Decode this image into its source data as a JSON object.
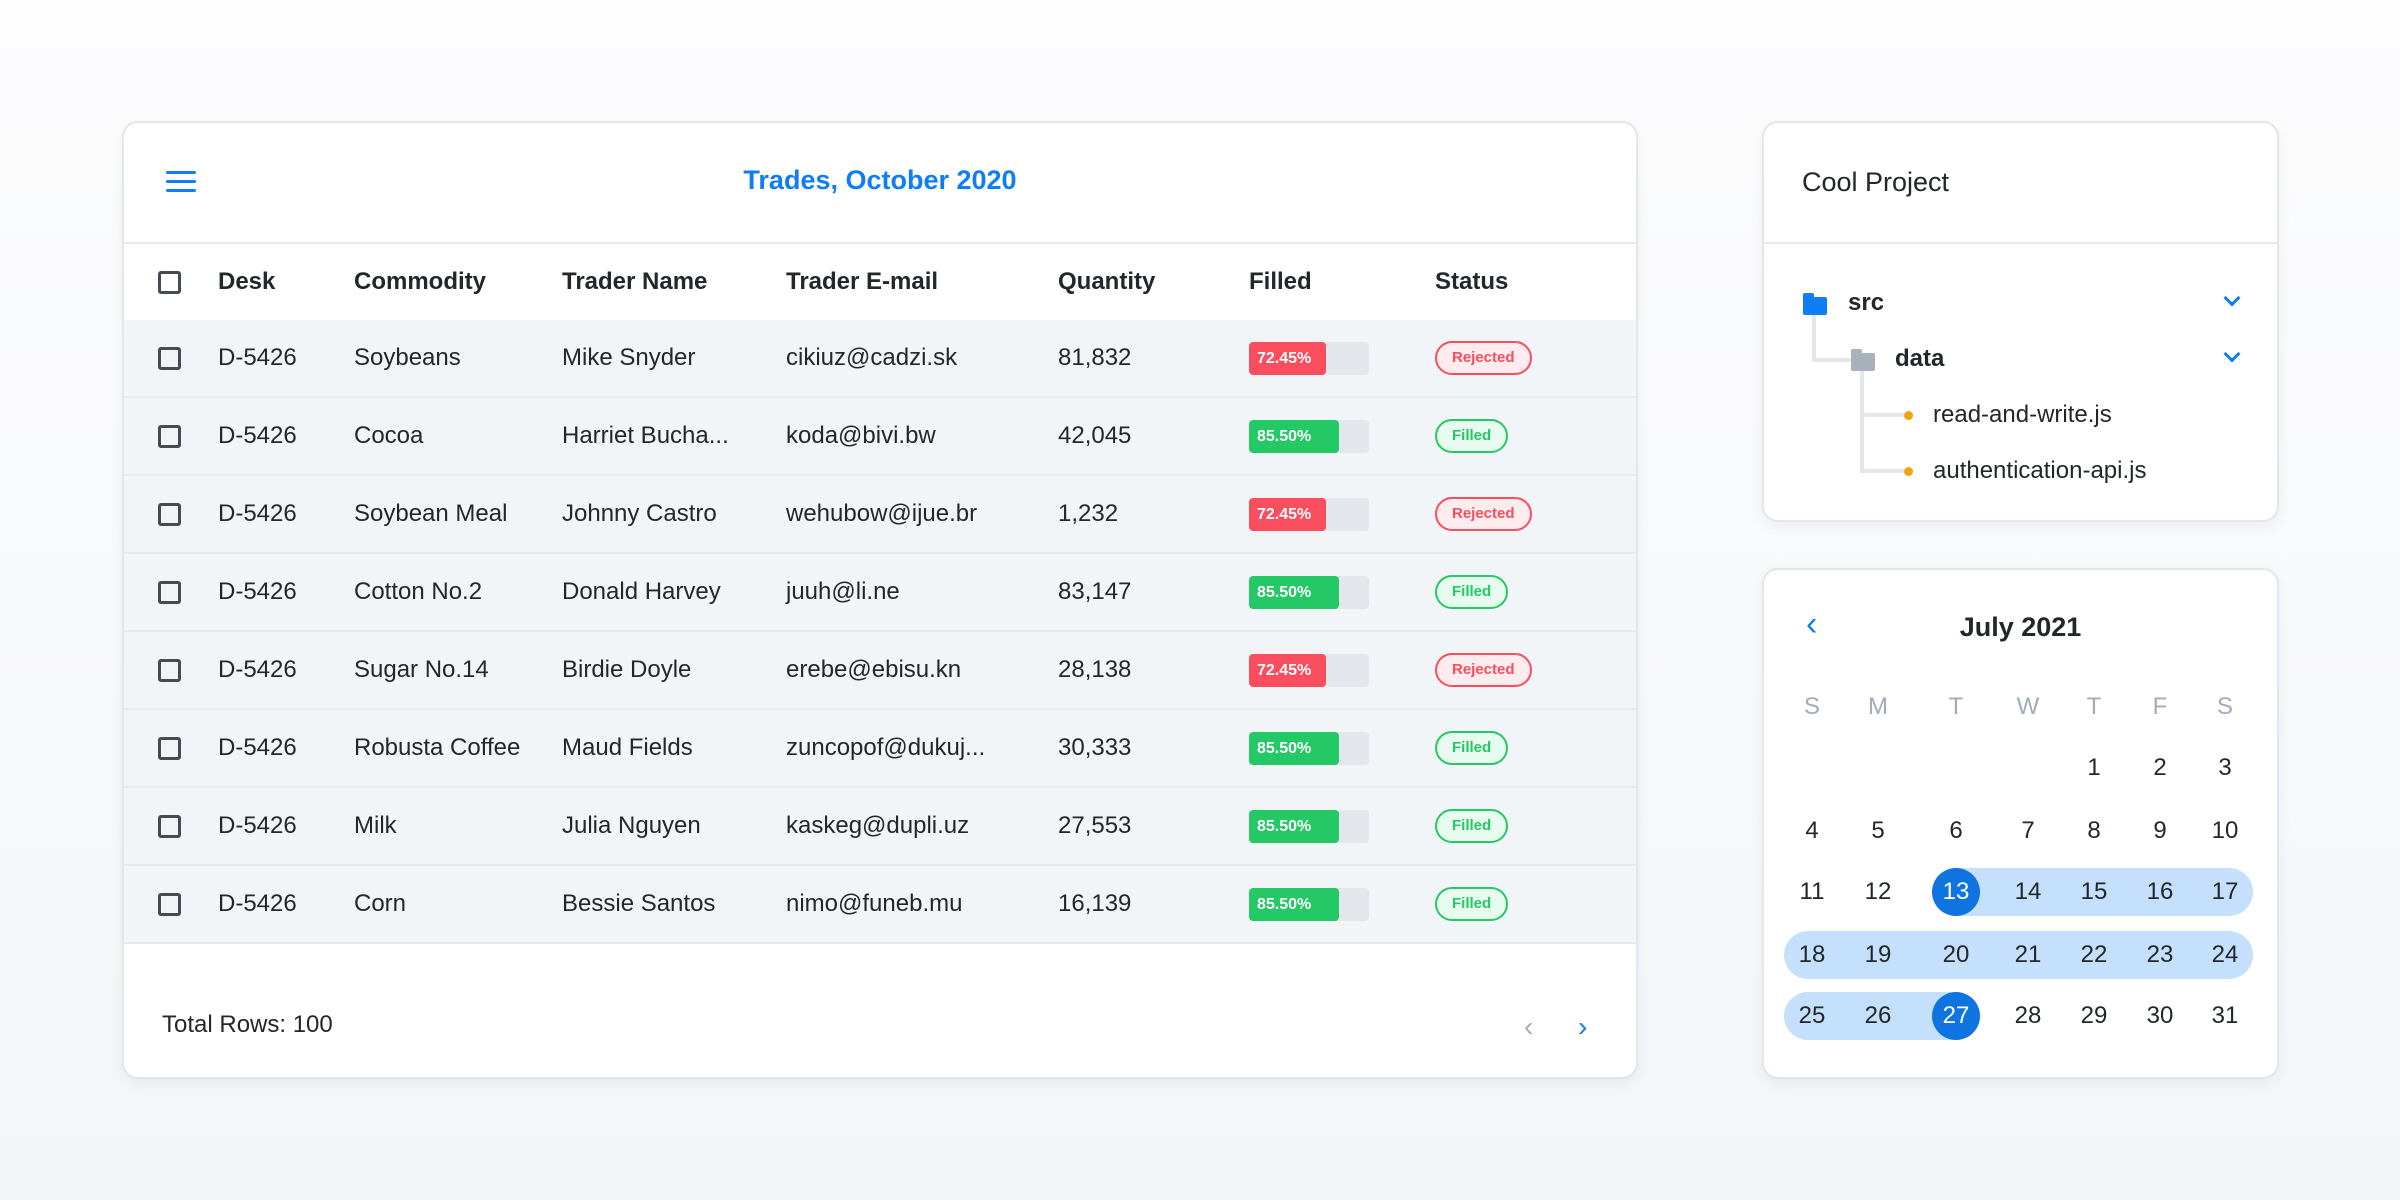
{
  "table": {
    "title": "Trades, October 2020",
    "columns": [
      "Desk",
      "Commodity",
      "Trader Name",
      "Trader E-mail",
      "Quantity",
      "Filled",
      "Status"
    ],
    "rows": [
      {
        "desk": "D-5426",
        "commodity": "Soybeans",
        "trader": "Mike Snyder",
        "email": "cikiuz@cadzi.sk",
        "quantity": "81,832",
        "filled": "72.45%",
        "filled_value": 72.45,
        "status": "Rejected"
      },
      {
        "desk": "D-5426",
        "commodity": "Cocoa",
        "trader": "Harriet Bucha...",
        "email": "koda@bivi.bw",
        "quantity": "42,045",
        "filled": "85.50%",
        "filled_value": 85.5,
        "status": "Filled"
      },
      {
        "desk": "D-5426",
        "commodity": "Soybean Meal",
        "trader": "Johnny Castro",
        "email": "wehubow@ijue.br",
        "quantity": "1,232",
        "filled": "72.45%",
        "filled_value": 72.45,
        "status": "Rejected"
      },
      {
        "desk": "D-5426",
        "commodity": "Cotton No.2",
        "trader": "Donald Harvey",
        "email": "juuh@li.ne",
        "quantity": "83,147",
        "filled": "85.50%",
        "filled_value": 85.5,
        "status": "Filled"
      },
      {
        "desk": "D-5426",
        "commodity": "Sugar No.14",
        "trader": "Birdie Doyle",
        "email": "erebe@ebisu.kn",
        "quantity": "28,138",
        "filled": "72.45%",
        "filled_value": 72.45,
        "status": "Rejected"
      },
      {
        "desk": "D-5426",
        "commodity": "Robusta Coffee",
        "trader": "Maud Fields",
        "email": "zuncopof@dukuj...",
        "quantity": "30,333",
        "filled": "85.50%",
        "filled_value": 85.5,
        "status": "Filled"
      },
      {
        "desk": "D-5426",
        "commodity": "Milk",
        "trader": "Julia Nguyen",
        "email": "kaskeg@dupli.uz",
        "quantity": "27,553",
        "filled": "85.50%",
        "filled_value": 85.5,
        "status": "Filled"
      },
      {
        "desk": "D-5426",
        "commodity": "Corn",
        "trader": "Bessie Santos",
        "email": "nimo@funeb.mu",
        "quantity": "16,139",
        "filled": "85.50%",
        "filled_value": 85.5,
        "status": "Filled"
      }
    ],
    "total_rows": "Total Rows: 100",
    "prev_icon": "chevron-left-icon",
    "next_icon": "chevron-right-icon"
  },
  "colors": {
    "accent": "#0f7ef5",
    "rejected": "#fa4d5e",
    "filled": "#24c865",
    "range": "#c4e0fd",
    "selected": "#0f73e0",
    "file_dot": "#f2a30f"
  },
  "tree": {
    "title": "Cool Project",
    "folder": "src",
    "subfolder": "data",
    "files": [
      "read-and-write.js",
      "authentication-api.js"
    ]
  },
  "calendar": {
    "title": "July 2021",
    "weekdays": [
      "S",
      "M",
      "T",
      "W",
      "T",
      "F",
      "S"
    ],
    "first_weekday": 4,
    "days_in_month": 31,
    "range_start": 13,
    "range_end": 27
  }
}
